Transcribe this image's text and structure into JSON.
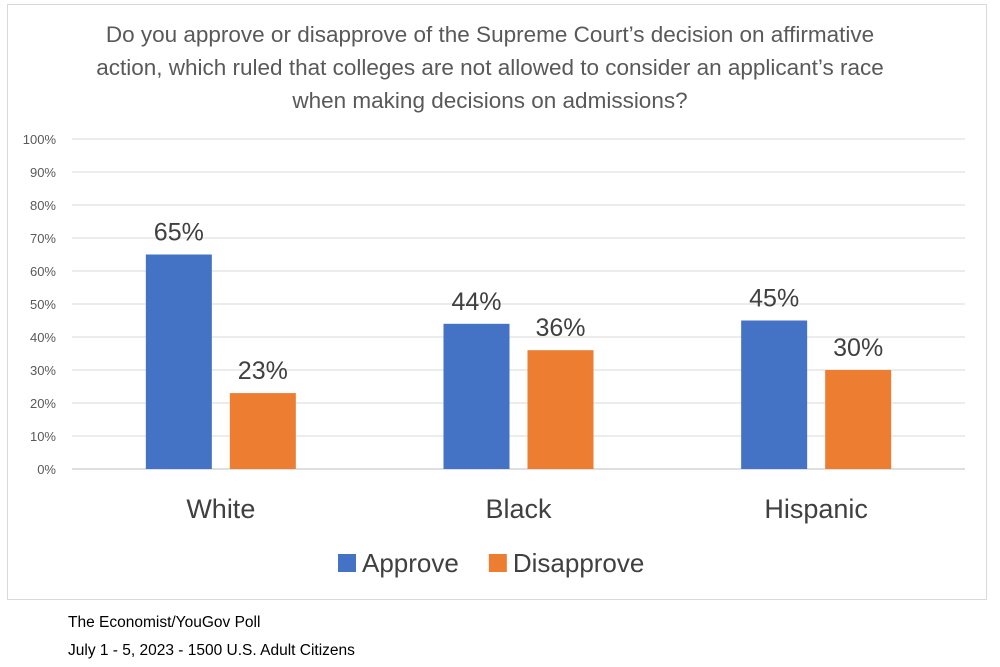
{
  "chart_data": {
    "type": "bar",
    "title": "Do you approve or disapprove of the Supreme Court’s decision on affirmative action, which ruled that colleges are not allowed to consider an applicant’s race when making decisions on admissions?",
    "categories": [
      "White",
      "Black",
      "Hispanic"
    ],
    "series": [
      {
        "name": "Approve",
        "values": [
          65,
          44,
          45
        ],
        "color": "#4472c4"
      },
      {
        "name": "Disapprove",
        "values": [
          23,
          36,
          30
        ],
        "color": "#ed7d31"
      }
    ],
    "ylim": [
      0,
      100
    ],
    "y_ticks": [
      0,
      10,
      20,
      30,
      40,
      50,
      60,
      70,
      80,
      90,
      100
    ],
    "y_tick_suffix": "%",
    "value_suffix": "%",
    "grid": true,
    "legend_position": "bottom"
  },
  "source": {
    "line1": "The Economist/YouGov Poll",
    "line2": "July 1 - 5, 2023 - 1500 U.S. Adult Citizens"
  }
}
